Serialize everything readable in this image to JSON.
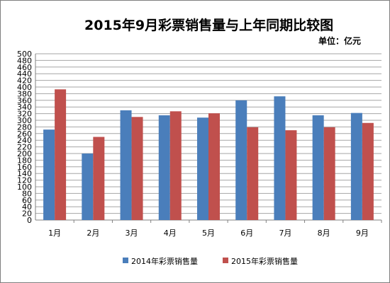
{
  "chart_data": {
    "type": "bar",
    "title": "2015年9月彩票销售量与上年同期比较图",
    "unit_label": "单位：亿元",
    "categories": [
      "1月",
      "2月",
      "3月",
      "4月",
      "5月",
      "6月",
      "7月",
      "8月",
      "9月"
    ],
    "series": [
      {
        "name": "2014年彩票销售量",
        "color": "#4a7ebb",
        "values": [
          272,
          200,
          330,
          315,
          308,
          360,
          372,
          315,
          322
        ]
      },
      {
        "name": "2015年彩票销售量",
        "color": "#c0504d",
        "values": [
          393,
          250,
          310,
          327,
          321,
          279,
          270,
          279,
          292
        ]
      }
    ],
    "ylim": [
      0,
      500
    ],
    "ytick_step": 20,
    "grid": true,
    "legend": "bottom"
  }
}
